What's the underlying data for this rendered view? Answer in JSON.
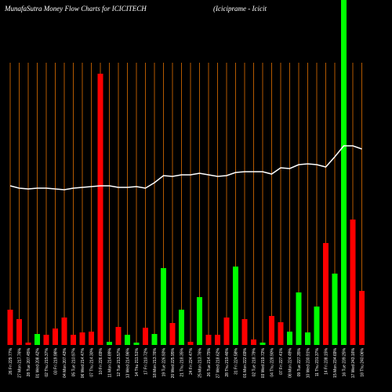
{
  "chart_data": {
    "type": "money-flow",
    "title": "MunafaSutra  Money Flow  Charts for ICICITECH",
    "subtitle": "(Iciciprame -  Icicit",
    "categories": [
      "26 Fri 229.77%",
      "27 Mon 217.76%",
      "28 Tue 207.45%",
      "01 Wed 208.42%",
      "02 Thu 215.37%",
      "03 Fri 219.98%",
      "04 Mon 207.43%",
      "05 Tue 210.97%",
      "06 Wed 214.47%",
      "07 Thu 214.30%",
      "10 Fri 226.69%",
      "11 Mon 214.89%",
      "12 Tue 213.57%",
      "13 Wed 214.96%",
      "14 Thu 211.51%",
      "17 Fri 210.72%",
      "18 Mon 213.76%",
      "19 Tue 226.93%",
      "20 Wed 225.95%",
      "21 Thu 218.35%",
      "24 Fri 224.47%",
      "25 Mon 213.76%",
      "26 Tue 214.75%",
      "27 Wed 218.62%",
      "28 Thu 219.46%",
      "31 Fri 224.58%",
      "01 Mon 222.69%",
      "02 Tue 218.79%",
      "03 Wed 219.72%",
      "04 Thu 228.90%",
      "07 Fri 227.41%",
      "08 Mon 224.49%",
      "09 Tue 227.35%",
      "10 Wed 230.91%",
      "11 Thu 231.37%",
      "14 Fri 238.15%",
      "15 Mon 234.69%",
      "16 Tue 239.25%",
      "17 Wed 243.16%",
      "18 Thu 240.06%"
    ],
    "values": [
      45,
      33,
      3,
      14,
      13,
      21,
      35,
      13,
      16,
      17,
      346,
      4,
      23,
      13,
      3,
      22,
      14,
      98,
      28,
      45,
      4,
      61,
      13,
      13,
      35,
      100,
      33,
      7,
      3,
      37,
      29,
      17,
      67,
      16,
      49,
      130,
      91,
      440,
      160,
      69
    ],
    "colors": [
      "#ff0000",
      "#ff0000",
      "#ff0000",
      "#00ff00",
      "#ff0000",
      "#ff0000",
      "#ff0000",
      "#ff0000",
      "#ff0000",
      "#ff0000",
      "#ff0000",
      "#00ff00",
      "#ff0000",
      "#00ff00",
      "#00ff00",
      "#ff0000",
      "#00ff00",
      "#00ff00",
      "#ff0000",
      "#00ff00",
      "#ff0000",
      "#00ff00",
      "#ff0000",
      "#ff0000",
      "#ff0000",
      "#00ff00",
      "#ff0000",
      "#ff0000",
      "#00ff00",
      "#ff0000",
      "#ff0000",
      "#00ff00",
      "#00ff00",
      "#00ff00",
      "#00ff00",
      "#ff0000",
      "#00ff00",
      "#00ff00",
      "#ff0000",
      "#ff0000"
    ],
    "line": [
      203,
      200,
      199,
      200,
      200,
      199,
      198,
      200,
      201,
      202,
      203,
      203,
      201,
      201,
      202,
      200,
      207,
      216,
      215,
      217,
      217,
      219,
      217,
      215,
      216,
      220,
      221,
      221,
      221,
      218,
      226,
      225,
      230,
      231,
      230,
      227,
      240,
      254,
      254,
      250
    ],
    "line_color": "#ffffff",
    "grid_color": "#b35900",
    "ylim": [
      0,
      360
    ]
  }
}
